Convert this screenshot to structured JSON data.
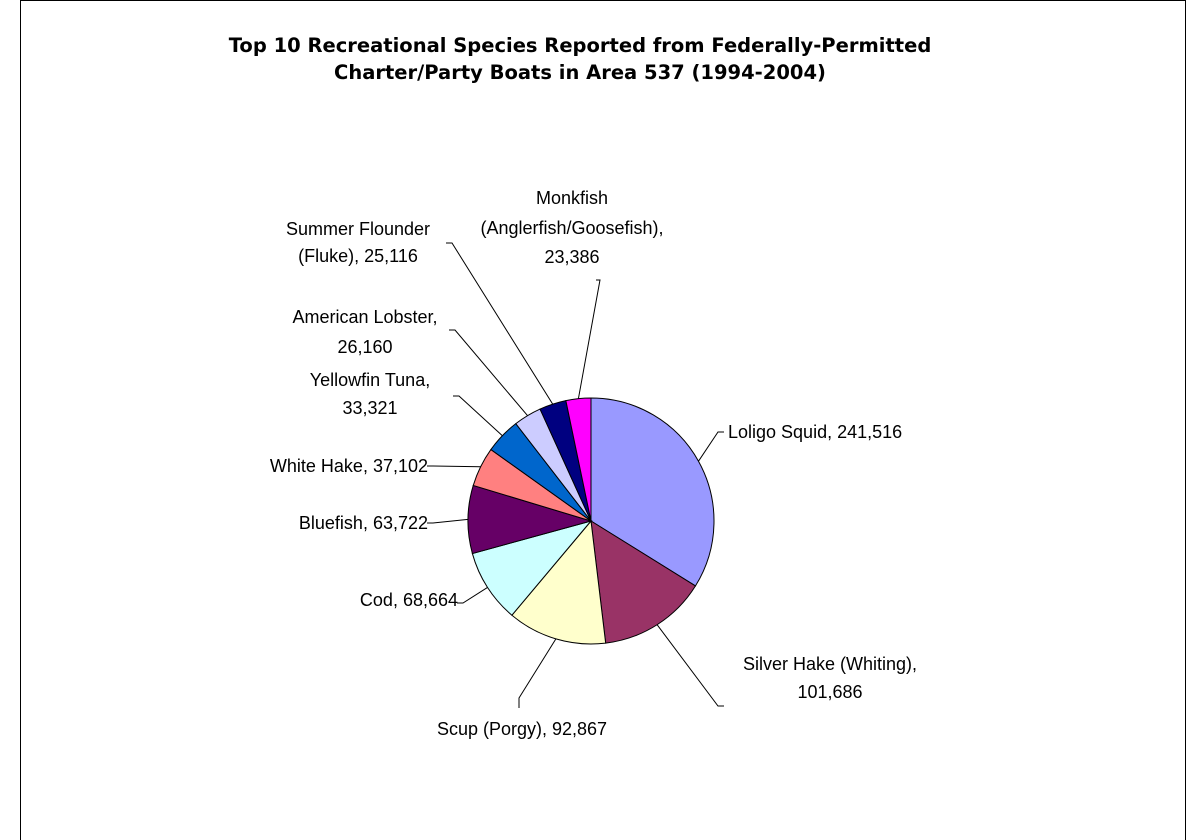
{
  "chart_data": {
    "type": "pie",
    "title": "Top 10 Recreational Species Reported from Federally-Permitted\nCharter/Party Boats in Area 537 (1994-2004)",
    "slices": [
      {
        "name": "Loligo Squid",
        "value": 241516,
        "display": "241,516",
        "color": "#9999ff"
      },
      {
        "name": "Silver Hake (Whiting)",
        "value": 101686,
        "display": "101,686",
        "color": "#993366"
      },
      {
        "name": "Scup (Porgy)",
        "value": 92867,
        "display": "92,867",
        "color": "#ffffcc"
      },
      {
        "name": "Cod",
        "value": 68664,
        "display": "68,664",
        "color": "#ccffff"
      },
      {
        "name": "Bluefish",
        "value": 63722,
        "display": "63,722",
        "color": "#660066"
      },
      {
        "name": "White Hake",
        "value": 37102,
        "display": "37,102",
        "color": "#ff8080"
      },
      {
        "name": "Yellowfin Tuna",
        "value": 33321,
        "display": "33,321",
        "color": "#0066cc"
      },
      {
        "name": "American Lobster",
        "value": 26160,
        "display": "26,160",
        "color": "#ccccff"
      },
      {
        "name": "Summer Flounder (Fluke)",
        "value": 25116,
        "display": "25,116",
        "color": "#000080"
      },
      {
        "name": "Monkfish (Anglerfish/Goosefish)",
        "value": 23386,
        "display": "23,386",
        "color": "#ff00ff"
      }
    ],
    "start_angle": "12 o'clock",
    "direction": "clockwise",
    "legend": "none",
    "data_labels": "category name and value, outside with leader lines"
  }
}
